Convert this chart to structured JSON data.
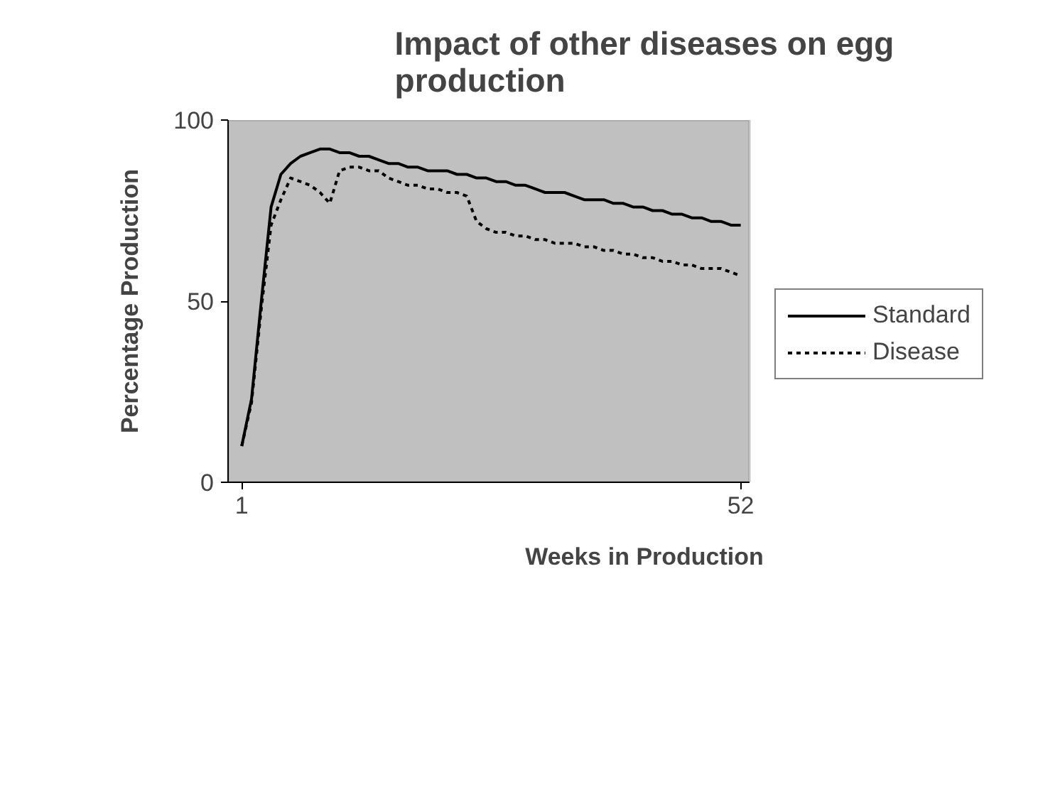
{
  "chart_data": {
    "type": "line",
    "title": "Impact of other diseases on egg production",
    "xlabel": "Weeks in Production",
    "ylabel": "Percentage Production",
    "x": [
      1,
      2,
      3,
      4,
      5,
      6,
      7,
      8,
      9,
      10,
      11,
      12,
      13,
      14,
      15,
      16,
      17,
      18,
      19,
      20,
      21,
      22,
      23,
      24,
      25,
      26,
      27,
      28,
      29,
      30,
      31,
      32,
      33,
      34,
      35,
      36,
      37,
      38,
      39,
      40,
      41,
      42,
      43,
      44,
      45,
      46,
      47,
      48,
      49,
      50,
      51,
      52
    ],
    "xlim": [
      -0.4,
      52.9
    ],
    "xticks": [
      1,
      52
    ],
    "ylim": [
      0,
      100
    ],
    "yticks": [
      0,
      50,
      100
    ],
    "grid": false,
    "legend": "right",
    "marker": "none",
    "series": [
      {
        "name": "Standard",
        "color": "#000000",
        "line_style": "solid",
        "values": [
          10,
          23,
          50,
          76,
          85,
          88,
          90,
          91,
          92,
          92,
          91,
          91,
          90,
          90,
          89,
          88,
          88,
          87,
          87,
          86,
          86,
          86,
          85,
          85,
          84,
          84,
          83,
          83,
          82,
          82,
          81,
          80,
          80,
          80,
          79,
          78,
          78,
          78,
          77,
          77,
          76,
          76,
          75,
          75,
          74,
          74,
          73,
          73,
          72,
          72,
          71,
          71
        ]
      },
      {
        "name": "Disease",
        "color": "#000000",
        "line_style": "dotted",
        "values": [
          10,
          22,
          48,
          71,
          78,
          84,
          83,
          82,
          80,
          77,
          86,
          87,
          87,
          86,
          86,
          84,
          83,
          82,
          82,
          81,
          81,
          80,
          80,
          79,
          72,
          70,
          69,
          69,
          68,
          68,
          67,
          67,
          66,
          66,
          66,
          65,
          65,
          64,
          64,
          63,
          63,
          62,
          62,
          61,
          61,
          60,
          60,
          59,
          59,
          59,
          58,
          57
        ]
      }
    ]
  }
}
